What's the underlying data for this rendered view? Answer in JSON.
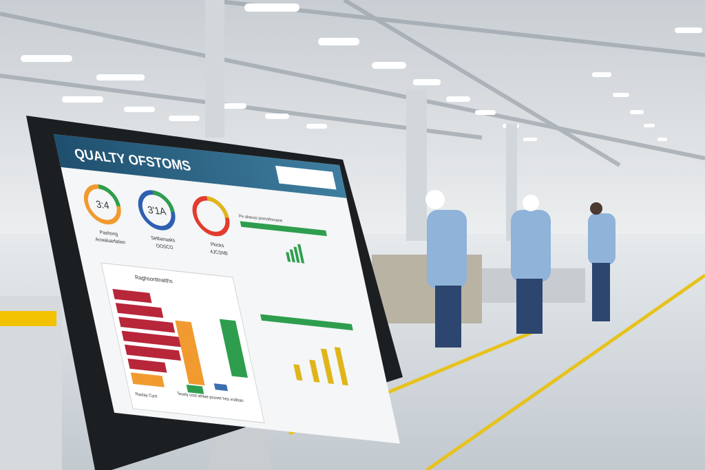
{
  "screen": {
    "title": "QUALTY OFSTOMS",
    "gauges": [
      {
        "value": "3:4",
        "label": "Pashong",
        "sublabel": "Acwaluarfation"
      },
      {
        "value": "3'1A",
        "label": "Setbanaaks",
        "sublabel": "OOSCO"
      },
      {
        "label": "Pkicks",
        "sublabel": "4JCSNB"
      }
    ],
    "chart_title": "Raghsonttnatths",
    "side_header": "Pe ahwusi pnmollnrvane",
    "footer": "Rastay Cyot",
    "footer_note": "Tesely cost whlae pouver hes vodhan"
  }
}
